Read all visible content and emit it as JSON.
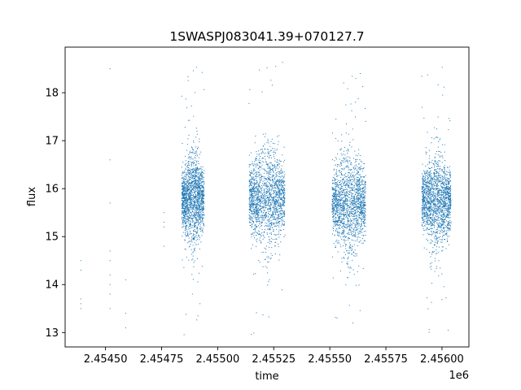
{
  "chart_data": {
    "type": "scatter",
    "title": "1SWASPJ083041.39+070127.7",
    "xlabel": "time",
    "ylabel": "flux",
    "x_offset_label": "1e6",
    "xlim": [
      2.45432,
      2.45612
    ],
    "ylim": [
      12.7,
      18.95
    ],
    "x_ticks": [
      2.4545,
      2.45475,
      2.455,
      2.45525,
      2.4555,
      2.45575,
      2.456
    ],
    "x_tick_labels": [
      "2.45450",
      "2.45475",
      "2.45500",
      "2.45525",
      "2.45550",
      "2.45575",
      "2.45600"
    ],
    "y_ticks": [
      13,
      14,
      15,
      16,
      17,
      18
    ],
    "y_tick_labels": [
      "13",
      "14",
      "15",
      "16",
      "17",
      "18"
    ],
    "grid": false,
    "series_color": "#1f77b4",
    "seasons": [
      {
        "x_start": 2.45484,
        "x_end": 2.45494,
        "center": 15.8,
        "spread": 0.5
      },
      {
        "x_start": 2.45514,
        "x_end": 2.4553,
        "center": 15.8,
        "spread": 0.55
      },
      {
        "x_start": 2.45551,
        "x_end": 2.45566,
        "center": 15.7,
        "spread": 0.55
      },
      {
        "x_start": 2.45591,
        "x_end": 2.45604,
        "center": 15.75,
        "spread": 0.5
      }
    ],
    "early_points": [
      {
        "x": 2.45439,
        "y": 13.7
      },
      {
        "x": 2.45439,
        "y": 13.6
      },
      {
        "x": 2.45439,
        "y": 14.3
      },
      {
        "x": 2.45439,
        "y": 14.5
      },
      {
        "x": 2.45439,
        "y": 13.5
      },
      {
        "x": 2.45452,
        "y": 18.5
      },
      {
        "x": 2.45452,
        "y": 16.6
      },
      {
        "x": 2.45452,
        "y": 15.7
      },
      {
        "x": 2.45452,
        "y": 14.7
      },
      {
        "x": 2.45452,
        "y": 14.5
      },
      {
        "x": 2.45452,
        "y": 14.2
      },
      {
        "x": 2.45452,
        "y": 14.0
      },
      {
        "x": 2.45452,
        "y": 13.8
      },
      {
        "x": 2.45452,
        "y": 13.5
      },
      {
        "x": 2.45459,
        "y": 14.1
      },
      {
        "x": 2.45459,
        "y": 13.4
      },
      {
        "x": 2.45459,
        "y": 13.1
      },
      {
        "x": 2.45476,
        "y": 15.5
      },
      {
        "x": 2.45476,
        "y": 15.3
      },
      {
        "x": 2.45476,
        "y": 15.2
      },
      {
        "x": 2.45476,
        "y": 14.8
      }
    ]
  }
}
